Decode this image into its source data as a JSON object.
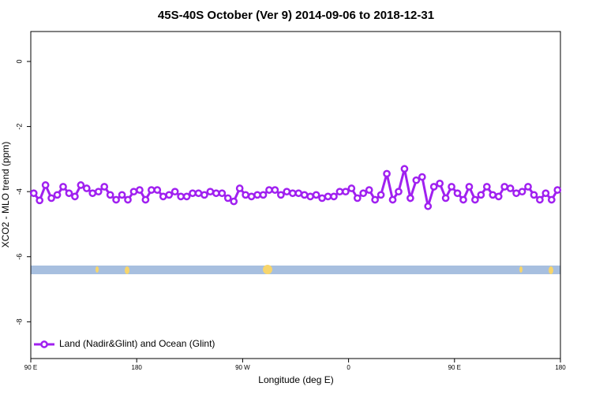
{
  "chart_data": {
    "type": "line",
    "title": "45S-40S October (Ver 9)   2014-09-06 to 2018-12-31",
    "x_label": "Longitude (deg E)",
    "y_label": "XCO2 - MLO trend (ppm)",
    "xlim": [
      90,
      540
    ],
    "xticks": [
      {
        "value": 90,
        "label": "90 E"
      },
      {
        "value": 180,
        "label": "180"
      },
      {
        "value": 270,
        "label": "90 W"
      },
      {
        "value": 360,
        "label": "0"
      },
      {
        "value": 450,
        "label": "90 E"
      },
      {
        "value": 540,
        "label": "180"
      }
    ],
    "ylim": [
      -9.13,
      0.92
    ],
    "yticks": [
      0,
      -2,
      -4,
      -6,
      -8
    ],
    "legend": "bottom-left",
    "x": [
      92.5,
      97.5,
      102.5,
      107.5,
      112.5,
      117.5,
      122.5,
      127.5,
      132.5,
      137.5,
      142.5,
      147.5,
      152.5,
      157.5,
      162.5,
      167.5,
      172.5,
      177.5,
      182.5,
      187.5,
      192.5,
      197.5,
      202.5,
      207.5,
      212.5,
      217.5,
      222.5,
      227.5,
      232.5,
      237.5,
      242.5,
      247.5,
      252.5,
      257.5,
      262.5,
      267.5,
      272.5,
      277.5,
      282.5,
      287.5,
      292.5,
      297.5,
      302.5,
      307.5,
      312.5,
      317.5,
      322.5,
      327.5,
      332.5,
      337.5,
      342.5,
      347.5,
      352.5,
      357.5,
      362.5,
      367.5,
      372.5,
      377.5,
      382.5,
      387.5,
      392.5,
      397.5,
      402.5,
      407.5,
      412.5,
      417.5,
      422.5,
      427.5,
      432.5,
      437.5,
      442.5,
      447.5,
      452.5,
      457.5,
      462.5,
      467.5,
      472.5,
      477.5,
      482.5,
      487.5,
      492.5,
      497.5,
      502.5,
      507.5,
      512.5,
      517.5,
      522.5,
      527.5,
      532.5,
      537.5
    ],
    "series": [
      {
        "name": "Land (Nadir&Glint) and Ocean (Glint)",
        "color": "#a020f0",
        "values": [
          -4.05,
          -4.27,
          -3.8,
          -4.2,
          -4.1,
          -3.85,
          -4.05,
          -4.15,
          -3.8,
          -3.9,
          -4.05,
          -4.0,
          -3.85,
          -4.1,
          -4.25,
          -4.1,
          -4.25,
          -4.0,
          -3.95,
          -4.25,
          -3.95,
          -3.95,
          -4.15,
          -4.1,
          -4.0,
          -4.15,
          -4.15,
          -4.05,
          -4.05,
          -4.1,
          -4.0,
          -4.05,
          -4.05,
          -4.2,
          -4.3,
          -3.9,
          -4.1,
          -4.15,
          -4.1,
          -4.1,
          -3.95,
          -3.95,
          -4.1,
          -4.0,
          -4.05,
          -4.05,
          -4.1,
          -4.15,
          -4.1,
          -4.2,
          -4.15,
          -4.15,
          -4.0,
          -4.0,
          -3.9,
          -4.2,
          -4.05,
          -3.95,
          -4.25,
          -4.1,
          -3.45,
          -4.25,
          -4.0,
          -3.3,
          -4.2,
          -3.65,
          -3.55,
          -4.45,
          -3.85,
          -3.75,
          -4.2,
          -3.85,
          -4.05,
          -4.25,
          -3.85,
          -4.25,
          -4.1,
          -3.85,
          -4.1,
          -4.15,
          -3.85,
          -3.9,
          -4.05,
          -4.0,
          -3.85,
          -4.1,
          -4.25,
          -4.05,
          -4.25,
          -3.95
        ]
      }
    ]
  }
}
